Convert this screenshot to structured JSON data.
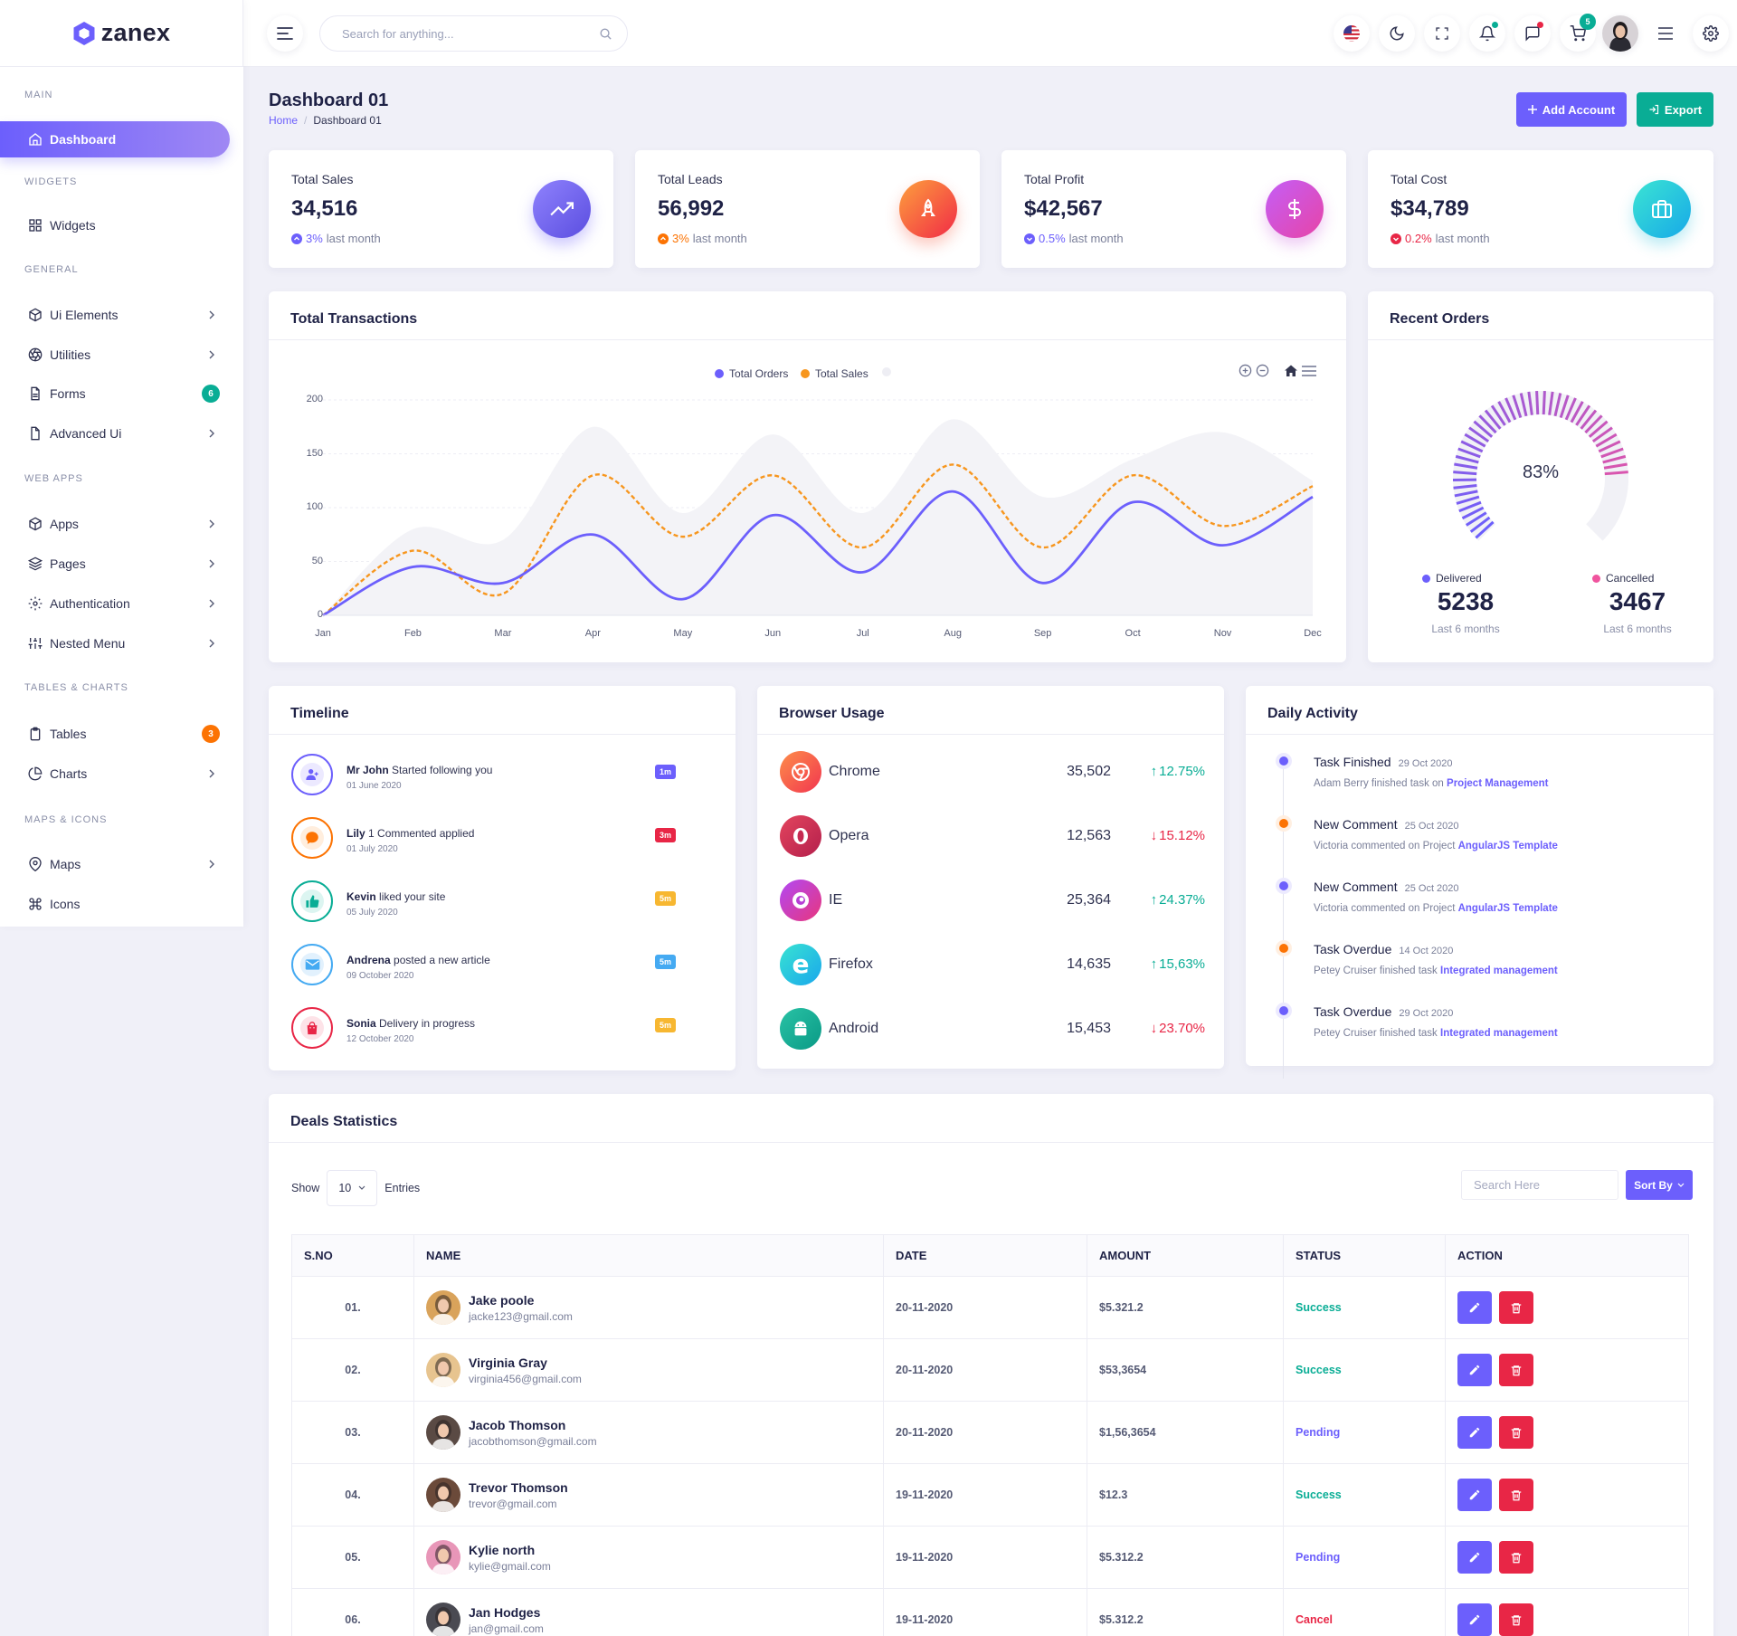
{
  "app": {
    "name": "zanex"
  },
  "colors": {
    "primary": "#6c5ffc",
    "secondary": "#05c3fb",
    "success": "#09ad95",
    "danger": "#e82646",
    "warning": "#f7b731",
    "orange": "#fc7303"
  },
  "sidebar": {
    "sections": [
      {
        "label": "MAIN"
      },
      {
        "label": "WIDGETS"
      },
      {
        "label": "GENERAL"
      },
      {
        "label": "WEB APPS"
      },
      {
        "label": "TABLES & CHARTS"
      },
      {
        "label": "MAPS & ICONS"
      }
    ],
    "items": [
      {
        "label": "Dashboard",
        "icon": "home-icon",
        "active": true
      },
      {
        "label": "Widgets",
        "icon": "grid-icon"
      },
      {
        "label": "Ui Elements",
        "icon": "cube-icon",
        "chevron": true
      },
      {
        "label": "Utilities",
        "icon": "aperture-icon",
        "chevron": true
      },
      {
        "label": "Forms",
        "icon": "file-text-icon",
        "badge": "6"
      },
      {
        "label": "Advanced Ui",
        "icon": "file-icon",
        "chevron": true
      },
      {
        "label": "Apps",
        "icon": "cube-icon",
        "chevron": true
      },
      {
        "label": "Pages",
        "icon": "layers-icon",
        "chevron": true
      },
      {
        "label": "Authentication",
        "icon": "settings-icon",
        "chevron": true
      },
      {
        "label": "Nested Menu",
        "icon": "sliders-icon",
        "chevron": true
      },
      {
        "label": "Tables",
        "icon": "clipboard-icon",
        "badge": "3"
      },
      {
        "label": "Charts",
        "icon": "pie-chart-icon",
        "chevron": true
      },
      {
        "label": "Maps",
        "icon": "map-pin-icon",
        "chevron": true
      },
      {
        "label": "Icons",
        "icon": "command-icon"
      }
    ]
  },
  "header": {
    "search_placeholder": "Search for anything...",
    "cart_badge": "5",
    "icons": [
      "menu-toggle-icon",
      "search-icon",
      "flag-us-icon",
      "moon-icon",
      "fullscreen-icon",
      "bell-icon",
      "chat-icon",
      "cart-icon",
      "avatar",
      "menu-icon",
      "settings-icon"
    ]
  },
  "page": {
    "title": "Dashboard 01",
    "breadcrumb": [
      "Home",
      "Dashboard 01"
    ],
    "add_account": "Add Account",
    "export": "Export"
  },
  "stats": [
    {
      "label": "Total Sales",
      "value": "34,516",
      "change": "3%",
      "suffix": "last month",
      "direction": "up",
      "color": "#6c5ffc",
      "icon": "trending-up-icon"
    },
    {
      "label": "Total Leads",
      "value": "56,992",
      "change": "3%",
      "suffix": "last month",
      "direction": "up",
      "color": "#fc7303",
      "icon": "rocket-icon"
    },
    {
      "label": "Total Profit",
      "value": "$42,567",
      "change": "0.5%",
      "suffix": "last month",
      "direction": "down",
      "color": "#8b3fe4",
      "icon": "dollar-icon"
    },
    {
      "label": "Total Cost",
      "value": "$34,789",
      "change": "0.2%",
      "suffix": "last month",
      "direction": "down",
      "color": "#e82646",
      "icon": "briefcase-icon"
    }
  ],
  "transactions": {
    "title": "Total Transactions",
    "legend": [
      "Total Orders",
      "Total Sales"
    ]
  },
  "chart_data": {
    "type": "line",
    "title": "Total Transactions",
    "categories": [
      "Jan",
      "Feb",
      "Mar",
      "Apr",
      "May",
      "Jun",
      "Jul",
      "Aug",
      "Sep",
      "Oct",
      "Nov",
      "Dec"
    ],
    "y_ticks": [
      0,
      50,
      100,
      150,
      200
    ],
    "ylim": [
      0,
      200
    ],
    "grid": true,
    "legend_position": "top",
    "series": [
      {
        "name": "Total Orders",
        "color": "#6c5ffc",
        "style": "solid",
        "values": [
          0,
          45,
          30,
          75,
          15,
          93,
          40,
          115,
          30,
          105,
          65,
          110
        ]
      },
      {
        "name": "Total Sales",
        "color": "#f7961e",
        "style": "dashed",
        "values": [
          0,
          60,
          20,
          130,
          73,
          130,
          63,
          140,
          63,
          130,
          83,
          120
        ]
      },
      {
        "name": "",
        "color": "#f3f3f7",
        "style": "area",
        "values": [
          0,
          80,
          70,
          175,
          95,
          168,
          95,
          182,
          110,
          145,
          170,
          125
        ]
      }
    ]
  },
  "recent_orders": {
    "title": "Recent Orders",
    "percent": "83%",
    "percent_value": 83,
    "delivered_label": "Delivered",
    "delivered_value": "5238",
    "delivered_sub": "Last 6 months",
    "cancelled_label": "Cancelled",
    "cancelled_value": "3467",
    "cancelled_sub": "Last 6 months"
  },
  "timeline": {
    "title": "Timeline",
    "items": [
      {
        "name": "Mr John",
        "action": "Started following you",
        "date": "01 June 2020",
        "badge": "1m",
        "color": "#6c5ffc",
        "badge_color": "#6c5ffc",
        "icon": "user-plus-icon"
      },
      {
        "name": "Lily",
        "action": "1 Commented applied",
        "date": "01 July 2020",
        "badge": "3m",
        "color": "#fc7303",
        "badge_color": "#e82646",
        "icon": "comment-icon"
      },
      {
        "name": "Kevin",
        "action": "liked your site",
        "date": "05 July 2020",
        "badge": "5m",
        "color": "#09ad95",
        "badge_color": "#f7b731",
        "icon": "thumbs-up-icon"
      },
      {
        "name": "Andrena",
        "action": "posted a new article",
        "date": "09 October 2020",
        "badge": "5m",
        "color": "#45aaf2",
        "badge_color": "#45aaf2",
        "icon": "mail-icon"
      },
      {
        "name": "Sonia",
        "action": "Delivery in progress",
        "date": "12 October 2020",
        "badge": "5m",
        "color": "#e82646",
        "badge_color": "#f7b731",
        "icon": "shopping-bag-icon"
      }
    ]
  },
  "browser_usage": {
    "title": "Browser Usage",
    "items": [
      {
        "name": "Chrome",
        "count": "35,502",
        "change": "12.75%",
        "direction": "up",
        "color": "#fc7303",
        "icon": "chrome-icon"
      },
      {
        "name": "Opera",
        "count": "12,563",
        "change": "15.12%",
        "direction": "down",
        "color": "#c22a52",
        "icon": "opera-icon"
      },
      {
        "name": "IE",
        "count": "25,364",
        "change": "24.37%",
        "direction": "up",
        "color": "#8b3fe4",
        "icon": "ie-icon"
      },
      {
        "name": "Firefox",
        "count": "14,635",
        "change": "15,63%",
        "direction": "up",
        "color": "#05c3fb",
        "icon": "firefox-icon"
      },
      {
        "name": "Android",
        "count": "15,453",
        "change": "23.70%",
        "direction": "down",
        "color": "#09ad95",
        "icon": "android-icon"
      }
    ]
  },
  "daily_activity": {
    "title": "Daily Activity",
    "items": [
      {
        "title": "Task Finished",
        "date": "29 Oct 2020",
        "desc": "Adam Berry finished task on",
        "link": "Project Management",
        "color": "#6c5ffc"
      },
      {
        "title": "New Comment",
        "date": "25 Oct 2020",
        "desc": "Victoria commented on Project",
        "link": "AngularJS Template",
        "color": "#fc7303"
      },
      {
        "title": "New Comment",
        "date": "25 Oct 2020",
        "desc": "Victoria commented on Project",
        "link": "AngularJS Template",
        "color": "#6c5ffc"
      },
      {
        "title": "Task Overdue",
        "date": "14 Oct 2020",
        "desc": "Petey Cruiser finished task",
        "link": "Integrated management",
        "color": "#fc7303"
      },
      {
        "title": "Task Overdue",
        "date": "29 Oct 2020",
        "desc": "Petey Cruiser finished task",
        "link": "Integrated management",
        "color": "#6c5ffc"
      }
    ]
  },
  "deals": {
    "title": "Deals Statistics",
    "show_label": "Show",
    "entries_value": "10",
    "entries_label": "Entries",
    "search_placeholder": "Search Here",
    "sort_label": "Sort By",
    "columns": [
      "S.NO",
      "NAME",
      "DATE",
      "AMOUNT",
      "STATUS",
      "ACTION"
    ],
    "rows": [
      {
        "sno": "01.",
        "name": "Jake poole",
        "email": "jacke123@gmail.com",
        "date": "20-11-2020",
        "amount": "$5.321.2",
        "status": "Success",
        "status_color": "#09ad95",
        "avatar_bg": "#d9a35b"
      },
      {
        "sno": "02.",
        "name": "Virginia Gray",
        "email": "virginia456@gmail.com",
        "date": "20-11-2020",
        "amount": "$53,3654",
        "status": "Success",
        "status_color": "#09ad95",
        "avatar_bg": "#e7c48f"
      },
      {
        "sno": "03.",
        "name": "Jacob Thomson",
        "email": "jacobthomson@gmail.com",
        "date": "20-11-2020",
        "amount": "$1,56,3654",
        "status": "Pending",
        "status_color": "#6c5ffc",
        "avatar_bg": "#5a4a44"
      },
      {
        "sno": "04.",
        "name": "Trevor Thomson",
        "email": "trevor@gmail.com",
        "date": "19-11-2020",
        "amount": "$12.3",
        "status": "Success",
        "status_color": "#09ad95",
        "avatar_bg": "#6b4a3a"
      },
      {
        "sno": "05.",
        "name": "Kylie north",
        "email": "kylie@gmail.com",
        "date": "19-11-2020",
        "amount": "$5.312.2",
        "status": "Pending",
        "status_color": "#6c5ffc",
        "avatar_bg": "#e896b8"
      },
      {
        "sno": "06.",
        "name": "Jan Hodges",
        "email": "jan@gmail.com",
        "date": "19-11-2020",
        "amount": "$5.312.2",
        "status": "Cancel",
        "status_color": "#e82646",
        "avatar_bg": "#4a4a52"
      }
    ]
  }
}
